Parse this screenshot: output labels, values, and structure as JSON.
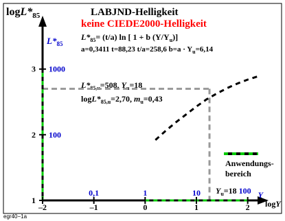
{
  "chart_data": {
    "type": "line",
    "title": "LABJND-Helligkeit",
    "subtitle": "keine CIEDE2000-Helligkeit",
    "ylabel_prefix": "log",
    "ylabel_main": "L*",
    "ylabel_sub": "85",
    "xlabel_prefix": "log",
    "xlabel_main": "Y",
    "xlim": [
      -2,
      2.5
    ],
    "ylim": [
      1,
      4
    ],
    "x_ticks": [
      "–2",
      "–1",
      "0",
      "1",
      "2"
    ],
    "x_tick_values": [
      -2,
      -1,
      0,
      1,
      2
    ],
    "y_ticks": [
      "1",
      "2",
      "3"
    ],
    "y_tick_values": [
      1,
      2,
      3
    ],
    "secondary_x_ticks": [
      "0,1",
      "1",
      "10"
    ],
    "secondary_x_tick_values": [
      -1,
      0,
      1
    ],
    "secondary_x_unit": "Y",
    "secondary_y_ticks": [
      "100",
      "1000"
    ],
    "secondary_y_tick_values": [
      2,
      3
    ],
    "secondary_y_unit_main": "L*",
    "secondary_y_unit_sub": "85",
    "formula": {
      "line1_main": "L*",
      "line1_sub": "85",
      "line1_rest": "= (t/a) ln [ 1 + b (Y/Y",
      "line1_sub2": "u",
      "line1_end": ")]",
      "line2_left": "a=0,3411  t=88,23   t/a=258,6  b=a · Y",
      "line2_sub": "u",
      "line2_right": "=6,14"
    },
    "ref_text": {
      "line1_main": "L*",
      "line1_sub": "85,u",
      "line1_rest": "=508, ",
      "line1_y": "Y",
      "line1_ysub": "u",
      "line1_end": "=18",
      "line2_pre": "log",
      "line2_main": "L*",
      "line2_sub": "85,u",
      "line2_mid": "=2,70, ",
      "line2_m": "m",
      "line2_msub": "u",
      "line2_end": "=0,43"
    },
    "yu_label": {
      "main": "Y",
      "sub": "u",
      "rest": "=18",
      "value": "100"
    },
    "legend": {
      "line1": "Anwendungs-",
      "line2": "bereich"
    },
    "reference_point": {
      "x": 1.255,
      "y": 2.7
    },
    "series": [
      {
        "style": "dashed",
        "x": [
          0.2,
          0.4,
          0.6,
          0.8,
          1.0,
          1.2,
          1.4,
          1.6,
          1.8,
          2.0,
          2.2
        ],
        "y": [
          1.92,
          2.06,
          2.19,
          2.31,
          2.43,
          2.54,
          2.63,
          2.71,
          2.78,
          2.84,
          2.89
        ]
      }
    ],
    "application_range": {
      "x": [
        0,
        2
      ],
      "y": [
        1,
        3
      ]
    }
  },
  "footer": {
    "code": "egr40−1a"
  },
  "colors": {
    "title_black": "#000000",
    "subtitle_red": "#ff0000",
    "blue": "#0000cc",
    "green": "#00cc00",
    "gray": "#999999"
  }
}
